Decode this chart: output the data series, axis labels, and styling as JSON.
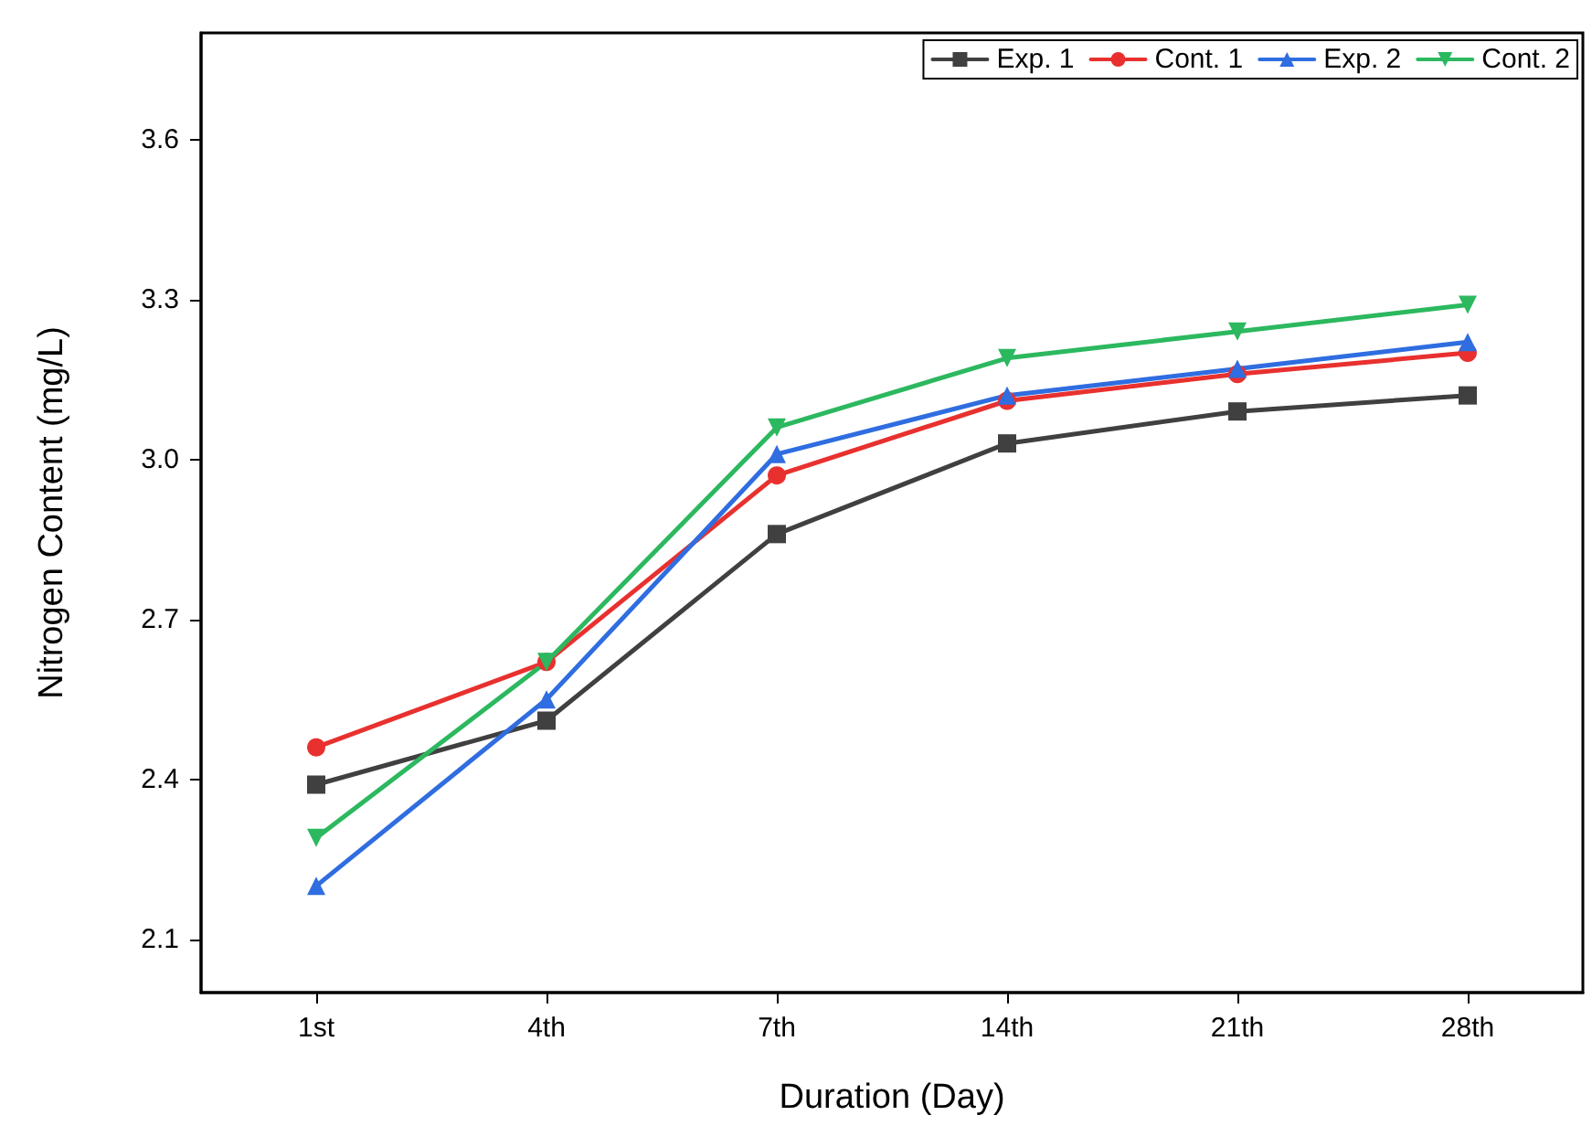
{
  "chart_data": {
    "type": "line",
    "xlabel": "Duration (Day)",
    "ylabel": "Nitrogen Content (mg/L)",
    "categories": [
      "1st",
      "4th",
      "7th",
      "14th",
      "21th",
      "28th"
    ],
    "series": [
      {
        "name": "Exp. 1",
        "color": "#404040",
        "marker": "square",
        "values": [
          2.39,
          2.51,
          2.86,
          3.03,
          3.09,
          3.12
        ]
      },
      {
        "name": "Cont. 1",
        "color": "#e8312f",
        "marker": "circle",
        "values": [
          2.46,
          2.62,
          2.97,
          3.11,
          3.16,
          3.2
        ]
      },
      {
        "name": "Exp. 2",
        "color": "#2f6de0",
        "marker": "triangle",
        "values": [
          2.2,
          2.55,
          3.01,
          3.12,
          3.17,
          3.22
        ]
      },
      {
        "name": "Cont. 2",
        "color": "#2cb85f",
        "marker": "triangle-down",
        "values": [
          2.29,
          2.62,
          3.06,
          3.19,
          3.24,
          3.29
        ]
      }
    ],
    "ylim": [
      2.0,
      3.8
    ],
    "yticks": [
      2.1,
      2.4,
      2.7,
      {
        "value": 3,
        "label": "3.0"
      },
      3.3,
      3.6
    ],
    "grid": false,
    "legend": "top right",
    "line_style": "solid"
  }
}
